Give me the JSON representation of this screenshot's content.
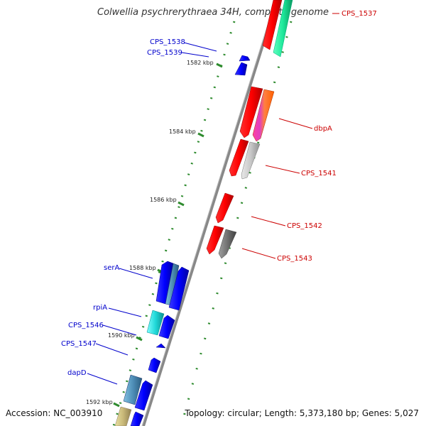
{
  "title": "Colwellia psychrerythraea 34H, complete genome",
  "accession": "Accession: NC_003910",
  "topology": "Topology: circular; Length: 5,373,180 bp; Genes: 5,027",
  "colors": {
    "backbone": "#808080",
    "forward_label": "#cc0000",
    "reverse_label": "#0000cc",
    "tick": "#2e8b2e"
  },
  "ticks": [
    {
      "label": "1582 kbp"
    },
    {
      "label": "1584 kbp"
    },
    {
      "label": "1586 kbp"
    },
    {
      "label": "1588 kbp"
    },
    {
      "label": "1590 kbp"
    },
    {
      "label": "1592 kbp"
    }
  ],
  "forward_labels": [
    {
      "name": "CPS_1537"
    },
    {
      "name": "dbpA"
    },
    {
      "name": "CPS_1541"
    },
    {
      "name": "CPS_1542"
    },
    {
      "name": "CPS_1543"
    }
  ],
  "reverse_labels": [
    {
      "name": "CPS_1538"
    },
    {
      "name": "CPS_1539"
    },
    {
      "name": "serA"
    },
    {
      "name": "rpiA"
    },
    {
      "name": "CPS_1546"
    },
    {
      "name": "CPS_1547"
    },
    {
      "name": "dapD"
    }
  ]
}
